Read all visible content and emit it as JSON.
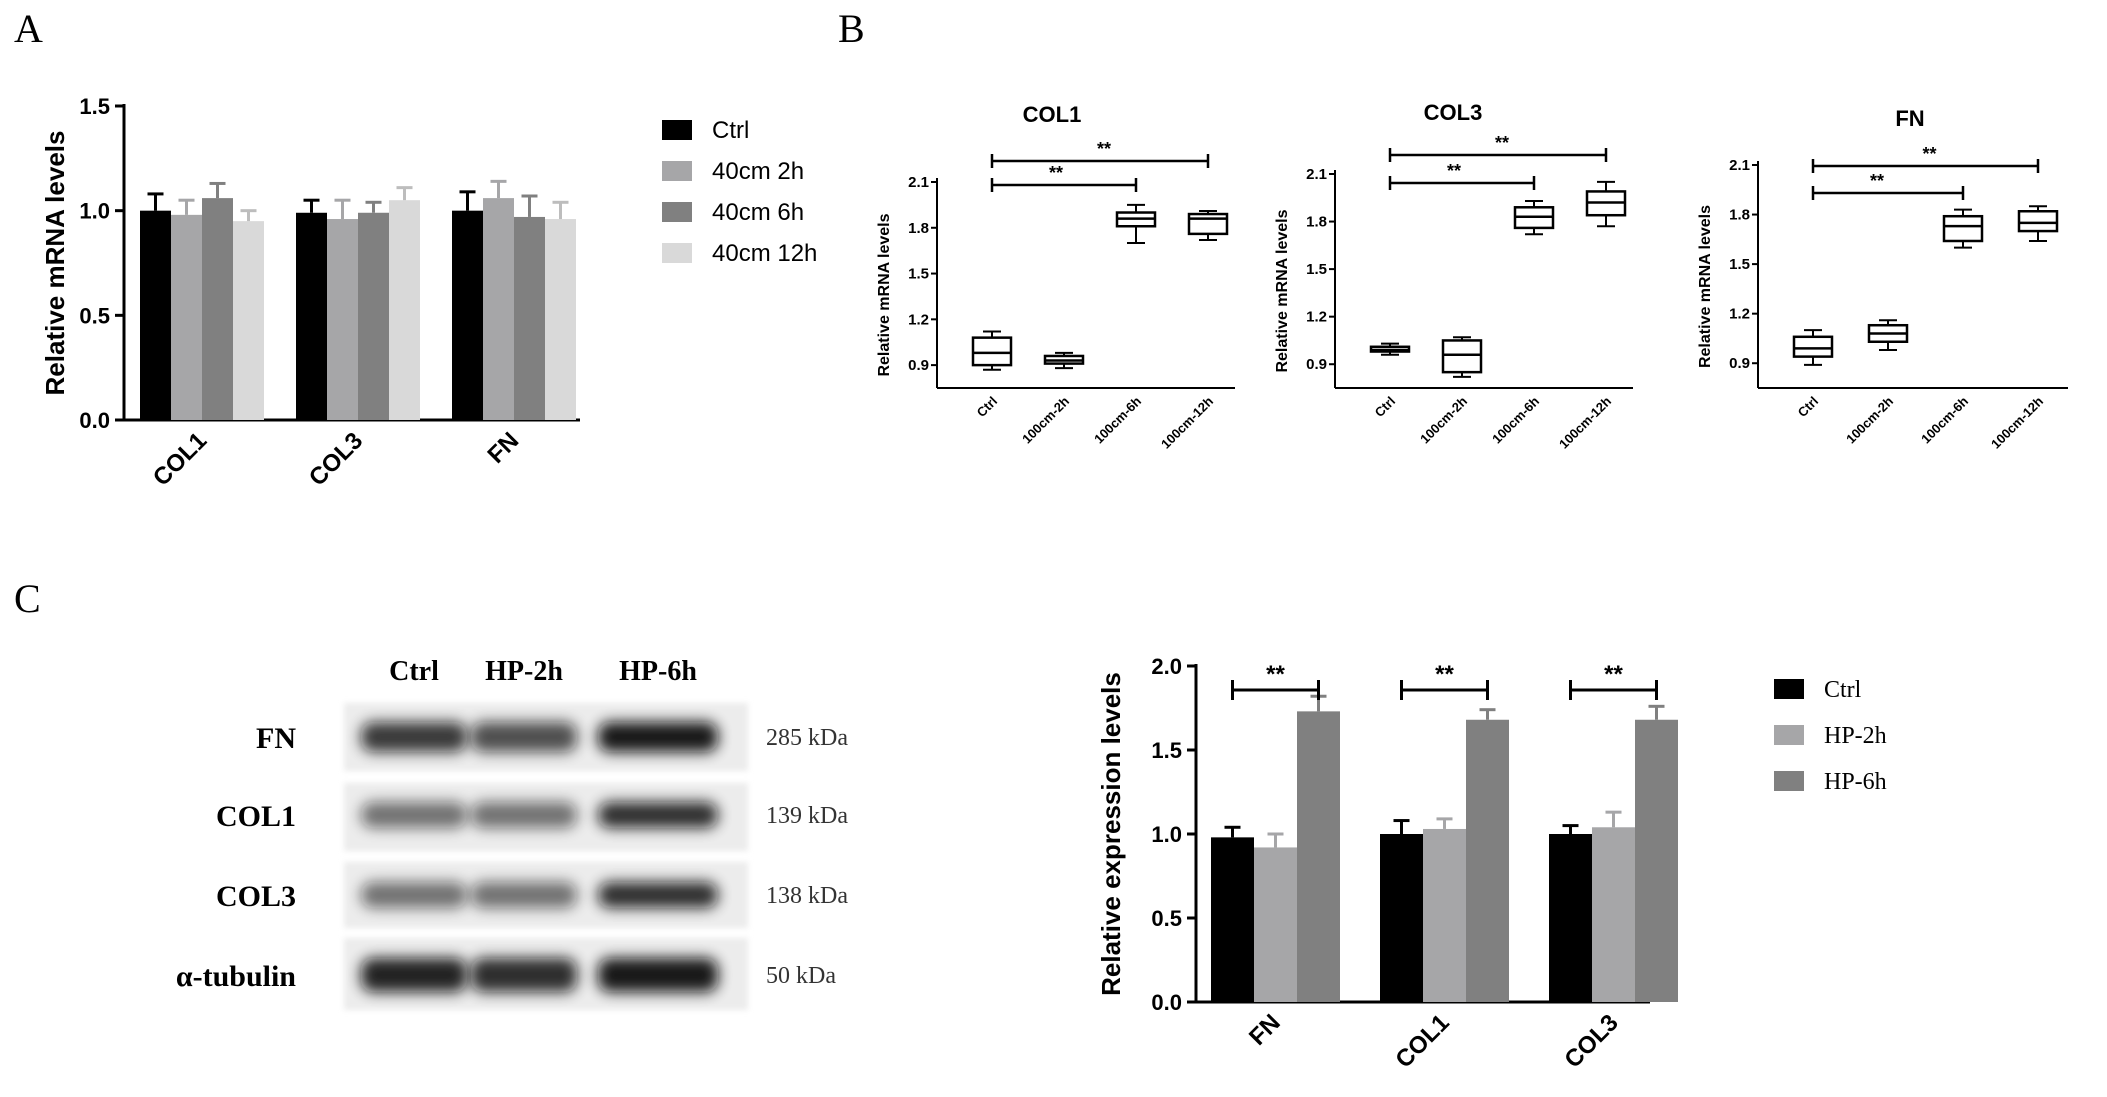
{
  "panels": {
    "a": "A",
    "b": "B",
    "c": "C"
  },
  "chart_data": [
    {
      "id": "A",
      "type": "bar",
      "ylabel": "Relative mRNA levels",
      "ylim": [
        0,
        1.5
      ],
      "yticks": [
        "0.0",
        "0.5",
        "1.0",
        "1.5"
      ],
      "categories": [
        "COL1",
        "COL3",
        "FN"
      ],
      "legend_position": "right",
      "series": [
        {
          "name": "Ctrl",
          "color": "#000000",
          "values": [
            1.0,
            0.99,
            1.0
          ],
          "errors": [
            0.08,
            0.06,
            0.09
          ]
        },
        {
          "name": "40cm 2h",
          "color": "#a6a6a8",
          "values": [
            0.98,
            0.96,
            1.06
          ],
          "errors": [
            0.07,
            0.09,
            0.08
          ]
        },
        {
          "name": "40cm 6h",
          "color": "#808080",
          "values": [
            1.06,
            0.99,
            0.97
          ],
          "errors": [
            0.07,
            0.05,
            0.1
          ]
        },
        {
          "name": "40cm 12h",
          "color": "#d9d9d9",
          "values": [
            0.95,
            1.05,
            0.96
          ],
          "errors": [
            0.05,
            0.06,
            0.08
          ]
        }
      ]
    },
    {
      "id": "B1",
      "type": "box",
      "title": "COL1",
      "ylabel": "Relative mRNA levels",
      "ylim": [
        0.75,
        2.1
      ],
      "yticks": [
        "0.9",
        "1.2",
        "1.5",
        "1.8",
        "2.1"
      ],
      "categories": [
        "Ctrl",
        "100cm-2h",
        "100cm-6h",
        "100cm-12h"
      ],
      "boxes": [
        {
          "min": 0.87,
          "q1": 0.9,
          "median": 0.98,
          "q3": 1.08,
          "max": 1.12
        },
        {
          "min": 0.88,
          "q1": 0.91,
          "median": 0.93,
          "q3": 0.96,
          "max": 0.98
        },
        {
          "min": 1.7,
          "q1": 1.81,
          "median": 1.86,
          "q3": 1.9,
          "max": 1.95
        },
        {
          "min": 1.72,
          "q1": 1.76,
          "median": 1.86,
          "q3": 1.89,
          "max": 1.91
        }
      ],
      "significance": [
        {
          "from": 0,
          "to": 2,
          "label": "**"
        },
        {
          "from": 0,
          "to": 3,
          "label": "**"
        }
      ]
    },
    {
      "id": "B2",
      "type": "box",
      "title": "COL3",
      "ylabel": "Relative mRNA levels",
      "ylim": [
        0.75,
        2.1
      ],
      "yticks": [
        "0.9",
        "1.2",
        "1.5",
        "1.8",
        "2.1"
      ],
      "categories": [
        "Ctrl",
        "100cm-2h",
        "100cm-6h",
        "100cm-12h"
      ],
      "boxes": [
        {
          "min": 0.96,
          "q1": 0.98,
          "median": 0.99,
          "q3": 1.01,
          "max": 1.03
        },
        {
          "min": 0.82,
          "q1": 0.85,
          "median": 0.96,
          "q3": 1.05,
          "max": 1.07
        },
        {
          "min": 1.72,
          "q1": 1.76,
          "median": 1.83,
          "q3": 1.89,
          "max": 1.93
        },
        {
          "min": 1.77,
          "q1": 1.84,
          "median": 1.92,
          "q3": 1.99,
          "max": 2.05
        }
      ],
      "significance": [
        {
          "from": 0,
          "to": 2,
          "label": "**"
        },
        {
          "from": 0,
          "to": 3,
          "label": "**"
        }
      ]
    },
    {
      "id": "B3",
      "type": "box",
      "title": "FN",
      "ylabel": "Relative mRNA levels",
      "ylim": [
        0.75,
        2.1
      ],
      "yticks": [
        "0.9",
        "1.2",
        "1.5",
        "1.8",
        "2.1"
      ],
      "categories": [
        "Ctrl",
        "100cm-2h",
        "100cm-6h",
        "100cm-12h"
      ],
      "boxes": [
        {
          "min": 0.89,
          "q1": 0.94,
          "median": 0.99,
          "q3": 1.06,
          "max": 1.1
        },
        {
          "min": 0.98,
          "q1": 1.03,
          "median": 1.08,
          "q3": 1.13,
          "max": 1.16
        },
        {
          "min": 1.6,
          "q1": 1.64,
          "median": 1.73,
          "q3": 1.79,
          "max": 1.83
        },
        {
          "min": 1.64,
          "q1": 1.7,
          "median": 1.75,
          "q3": 1.82,
          "max": 1.85
        }
      ],
      "significance": [
        {
          "from": 0,
          "to": 2,
          "label": "**"
        },
        {
          "from": 0,
          "to": 3,
          "label": "**"
        }
      ]
    },
    {
      "id": "C-bar",
      "type": "bar",
      "ylabel": "Relative expression levels",
      "ylim": [
        0,
        2.0
      ],
      "yticks": [
        "0.0",
        "0.5",
        "1.0",
        "1.5",
        "2.0"
      ],
      "categories": [
        "FN",
        "COL1",
        "COL3"
      ],
      "legend_position": "right",
      "series": [
        {
          "name": "Ctrl",
          "color": "#000000",
          "values": [
            0.98,
            1.0,
            1.0
          ],
          "errors": [
            0.06,
            0.08,
            0.05
          ]
        },
        {
          "name": "HP-2h",
          "color": "#a6a6a8",
          "values": [
            0.92,
            1.03,
            1.04
          ],
          "errors": [
            0.08,
            0.06,
            0.09
          ]
        },
        {
          "name": "HP-6h",
          "color": "#808080",
          "values": [
            1.73,
            1.68,
            1.68
          ],
          "errors": [
            0.09,
            0.06,
            0.08
          ]
        }
      ],
      "significance": [
        {
          "category": 0,
          "label": "**"
        },
        {
          "category": 1,
          "label": "**"
        },
        {
          "category": 2,
          "label": "**"
        }
      ]
    }
  ],
  "western_blot": {
    "lanes": [
      "Ctrl",
      "HP-2h",
      "HP-6h"
    ],
    "rows": [
      {
        "protein": "FN",
        "size": "285 kDa",
        "intensity": [
          0.8,
          0.7,
          0.95
        ]
      },
      {
        "protein": "COL1",
        "size": "139 kDa",
        "intensity": [
          0.55,
          0.55,
          0.85
        ]
      },
      {
        "protein": "COL3",
        "size": "138 kDa",
        "intensity": [
          0.55,
          0.55,
          0.85
        ]
      },
      {
        "protein": "α-tubulin",
        "size": "50 kDa",
        "intensity": [
          0.9,
          0.85,
          0.95
        ]
      }
    ]
  }
}
